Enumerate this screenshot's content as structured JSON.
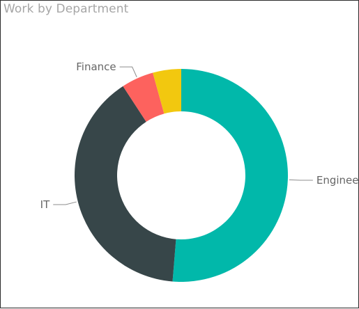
{
  "chart_data": {
    "type": "pie",
    "variant": "donut",
    "title": "Work by Department",
    "series": [
      {
        "name": "Engineering",
        "value": 51.3,
        "color": "#01B8AA"
      },
      {
        "name": "IT",
        "value": 39.5,
        "color": "#374649"
      },
      {
        "name": "",
        "value": 4.9,
        "color": "#FD625E"
      },
      {
        "name": "",
        "value": 4.3,
        "color": "#F2C80F"
      }
    ],
    "data_labels": [
      "Engineering",
      "IT",
      "Finance"
    ],
    "legend": "none"
  }
}
